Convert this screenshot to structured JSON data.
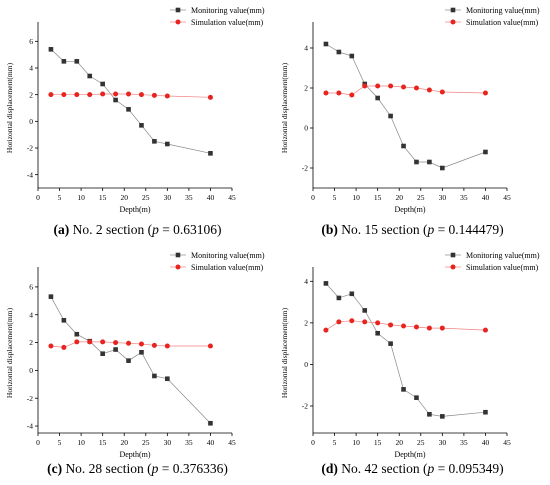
{
  "colors": {
    "monitoring": "#333333",
    "simulation": "#e8241f",
    "simulation_line": "#f08080",
    "axis": "#000000"
  },
  "chart_data": [
    {
      "type": "line",
      "panel_label": "(a)",
      "caption_prefix": "No. 2 section (",
      "p_symbol": "p",
      "p_text": " = 0.63106)",
      "xlabel": "Depth(m)",
      "ylabel": "Horizontal displacement(mm)",
      "xlim": [
        0,
        45
      ],
      "ylim": [
        -5,
        7
      ],
      "xticks": [
        "0",
        "5",
        "10",
        "15",
        "20",
        "25",
        "30",
        "35",
        "40",
        "45"
      ],
      "yticks": [
        "-4",
        "-2",
        "0",
        "2",
        "4",
        "6"
      ],
      "legend_position": "top-right",
      "series": [
        {
          "name": "Monitoring value(mm)",
          "x": [
            3,
            6,
            9,
            12,
            15,
            18,
            21,
            24,
            27,
            30,
            40
          ],
          "y": [
            5.4,
            4.5,
            4.5,
            3.4,
            2.8,
            1.6,
            0.9,
            -0.3,
            -1.5,
            -1.7,
            -2.4
          ]
        },
        {
          "name": "Simulation value(mm)",
          "x": [
            3,
            6,
            9,
            12,
            15,
            18,
            21,
            24,
            27,
            30,
            40
          ],
          "y": [
            2.0,
            2.0,
            2.0,
            2.0,
            2.05,
            2.05,
            2.05,
            2.0,
            1.95,
            1.9,
            1.8
          ]
        }
      ]
    },
    {
      "type": "line",
      "panel_label": "(b)",
      "caption_prefix": "No. 15 section (",
      "p_symbol": "p",
      "p_text": " = 0.144479)",
      "xlabel": "Depth(m)",
      "ylabel": "Horizontal displacement(mm)",
      "xlim": [
        0,
        45
      ],
      "ylim": [
        -3,
        5
      ],
      "xticks": [
        "0",
        "5",
        "10",
        "15",
        "20",
        "25",
        "30",
        "35",
        "40",
        "45"
      ],
      "yticks": [
        "-2",
        "0",
        "2",
        "4"
      ],
      "legend_position": "top-right",
      "series": [
        {
          "name": "Monitoring value(mm)",
          "x": [
            3,
            6,
            9,
            12,
            15,
            18,
            21,
            24,
            27,
            30,
            40
          ],
          "y": [
            4.2,
            3.8,
            3.6,
            2.2,
            1.5,
            0.6,
            -0.9,
            -1.7,
            -1.7,
            -2.0,
            -1.2
          ]
        },
        {
          "name": "Simulation value(mm)",
          "x": [
            3,
            6,
            9,
            12,
            15,
            18,
            21,
            24,
            27,
            30,
            40
          ],
          "y": [
            1.75,
            1.75,
            1.65,
            2.1,
            2.1,
            2.1,
            2.05,
            2.0,
            1.9,
            1.8,
            1.75
          ]
        }
      ]
    },
    {
      "type": "line",
      "panel_label": "(c)",
      "caption_prefix": "No. 28 section (",
      "p_symbol": "p",
      "p_text": " = 0.376336)",
      "xlabel": "Depth(m)",
      "ylabel": "Horizontal displacement(mm)",
      "xlim": [
        0,
        45
      ],
      "ylim": [
        -4.5,
        7
      ],
      "xticks": [
        "0",
        "5",
        "10",
        "15",
        "20",
        "25",
        "30",
        "35",
        "40",
        "45"
      ],
      "yticks": [
        "-4",
        "-2",
        "0",
        "2",
        "4",
        "6"
      ],
      "legend_position": "top-right",
      "series": [
        {
          "name": "Monitoring value(mm)",
          "x": [
            3,
            6,
            9,
            12,
            15,
            18,
            21,
            24,
            27,
            30,
            40
          ],
          "y": [
            5.3,
            3.6,
            2.6,
            2.1,
            1.2,
            1.5,
            0.7,
            1.3,
            -0.4,
            -0.6,
            -3.8
          ]
        },
        {
          "name": "Simulation value(mm)",
          "x": [
            3,
            6,
            9,
            12,
            15,
            18,
            21,
            24,
            27,
            30,
            40
          ],
          "y": [
            1.75,
            1.65,
            2.05,
            2.05,
            2.05,
            2.0,
            1.95,
            1.9,
            1.8,
            1.75,
            1.75
          ]
        }
      ]
    },
    {
      "type": "line",
      "panel_label": "(d)",
      "caption_prefix": "No. 42 section (",
      "p_symbol": "p",
      "p_text": " = 0.095349)",
      "xlabel": "Depth(m)",
      "ylabel": "Horizontal displacement(mm)",
      "xlim": [
        0,
        45
      ],
      "ylim": [
        -3.3,
        4.4
      ],
      "xticks": [
        "0",
        "5",
        "10",
        "15",
        "20",
        "25",
        "30",
        "35",
        "40",
        "45"
      ],
      "yticks": [
        "-2",
        "0",
        "2",
        "4"
      ],
      "legend_position": "top-right",
      "series": [
        {
          "name": "Monitoring value(mm)",
          "x": [
            3,
            6,
            9,
            12,
            15,
            18,
            21,
            24,
            27,
            30,
            40
          ],
          "y": [
            3.9,
            3.2,
            3.4,
            2.6,
            1.5,
            1.0,
            -1.2,
            -1.6,
            -2.4,
            -2.5,
            -2.3
          ]
        },
        {
          "name": "Simulation value(mm)",
          "x": [
            3,
            6,
            9,
            12,
            15,
            18,
            21,
            24,
            27,
            30,
            40
          ],
          "y": [
            1.65,
            2.05,
            2.1,
            2.05,
            2.0,
            1.9,
            1.85,
            1.8,
            1.75,
            1.75,
            1.65
          ]
        }
      ]
    }
  ]
}
